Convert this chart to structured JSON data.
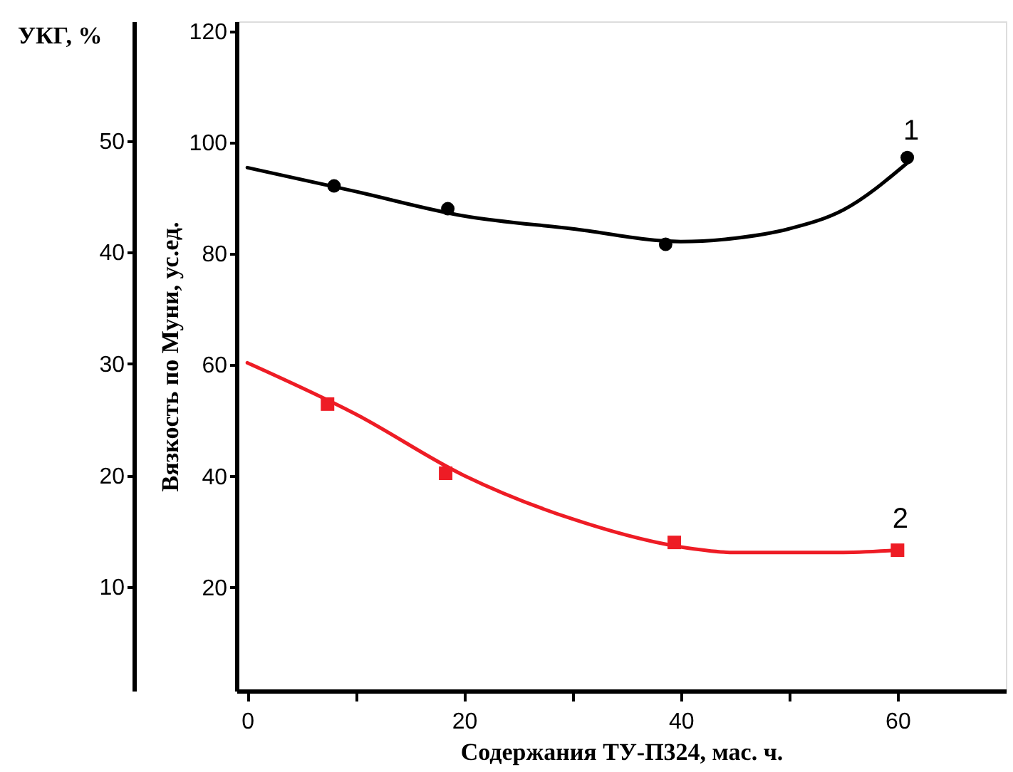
{
  "chart_data": {
    "type": "line",
    "xlabel": "Содержания ТУ-П324, мас. ч.",
    "ylabel": "Вязкость по Муни, ус.ед.",
    "y2label": "УКГ, %",
    "xlim": [
      -1,
      70
    ],
    "xticks": [
      0,
      {
        "value": 10,
        "label": null
      },
      20,
      {
        "value": 30,
        "label": null
      },
      40,
      {
        "value": 50,
        "label": null
      },
      60
    ],
    "ylim": [
      1.4,
      121.8
    ],
    "yticks": [
      20,
      40,
      60,
      80,
      100,
      120
    ],
    "y2lim": [
      0.7,
      60.7
    ],
    "y2ticks": [
      10,
      20,
      30,
      40,
      50
    ],
    "grid": false,
    "series": [
      {
        "type": "scatter",
        "color": "#000000",
        "marker": "circle",
        "x": [
          8,
          18.5,
          38.6,
          60.9
        ],
        "values": [
          92.2,
          88.1,
          81.7,
          97.3
        ]
      },
      {
        "name": "1",
        "color": "#000000",
        "marker": "none",
        "line_style": "solid",
        "x": [
          0,
          10,
          20,
          30,
          40,
          45,
          50,
          55,
          61
        ],
        "values": [
          95.5,
          91.2,
          86.8,
          84.5,
          82.2,
          82.8,
          84.5,
          87.9,
          96.5
        ]
      },
      {
        "type": "scatter",
        "axis": "y2",
        "color": "#ee1c25",
        "marker": "square",
        "x": [
          7.4,
          18.3,
          39.4,
          60
        ],
        "values": [
          26.4,
          20.2,
          14.0,
          13.3
        ]
      },
      {
        "axis": "y2",
        "name": "2",
        "color": "#ee1c25",
        "marker": "none",
        "line_style": "solid",
        "x": [
          0,
          10,
          20,
          30,
          40,
          45,
          55,
          60
        ],
        "values": [
          30.1,
          25.5,
          20.0,
          16.1,
          13.6,
          13.1,
          13.1,
          13.3
        ]
      }
    ]
  }
}
